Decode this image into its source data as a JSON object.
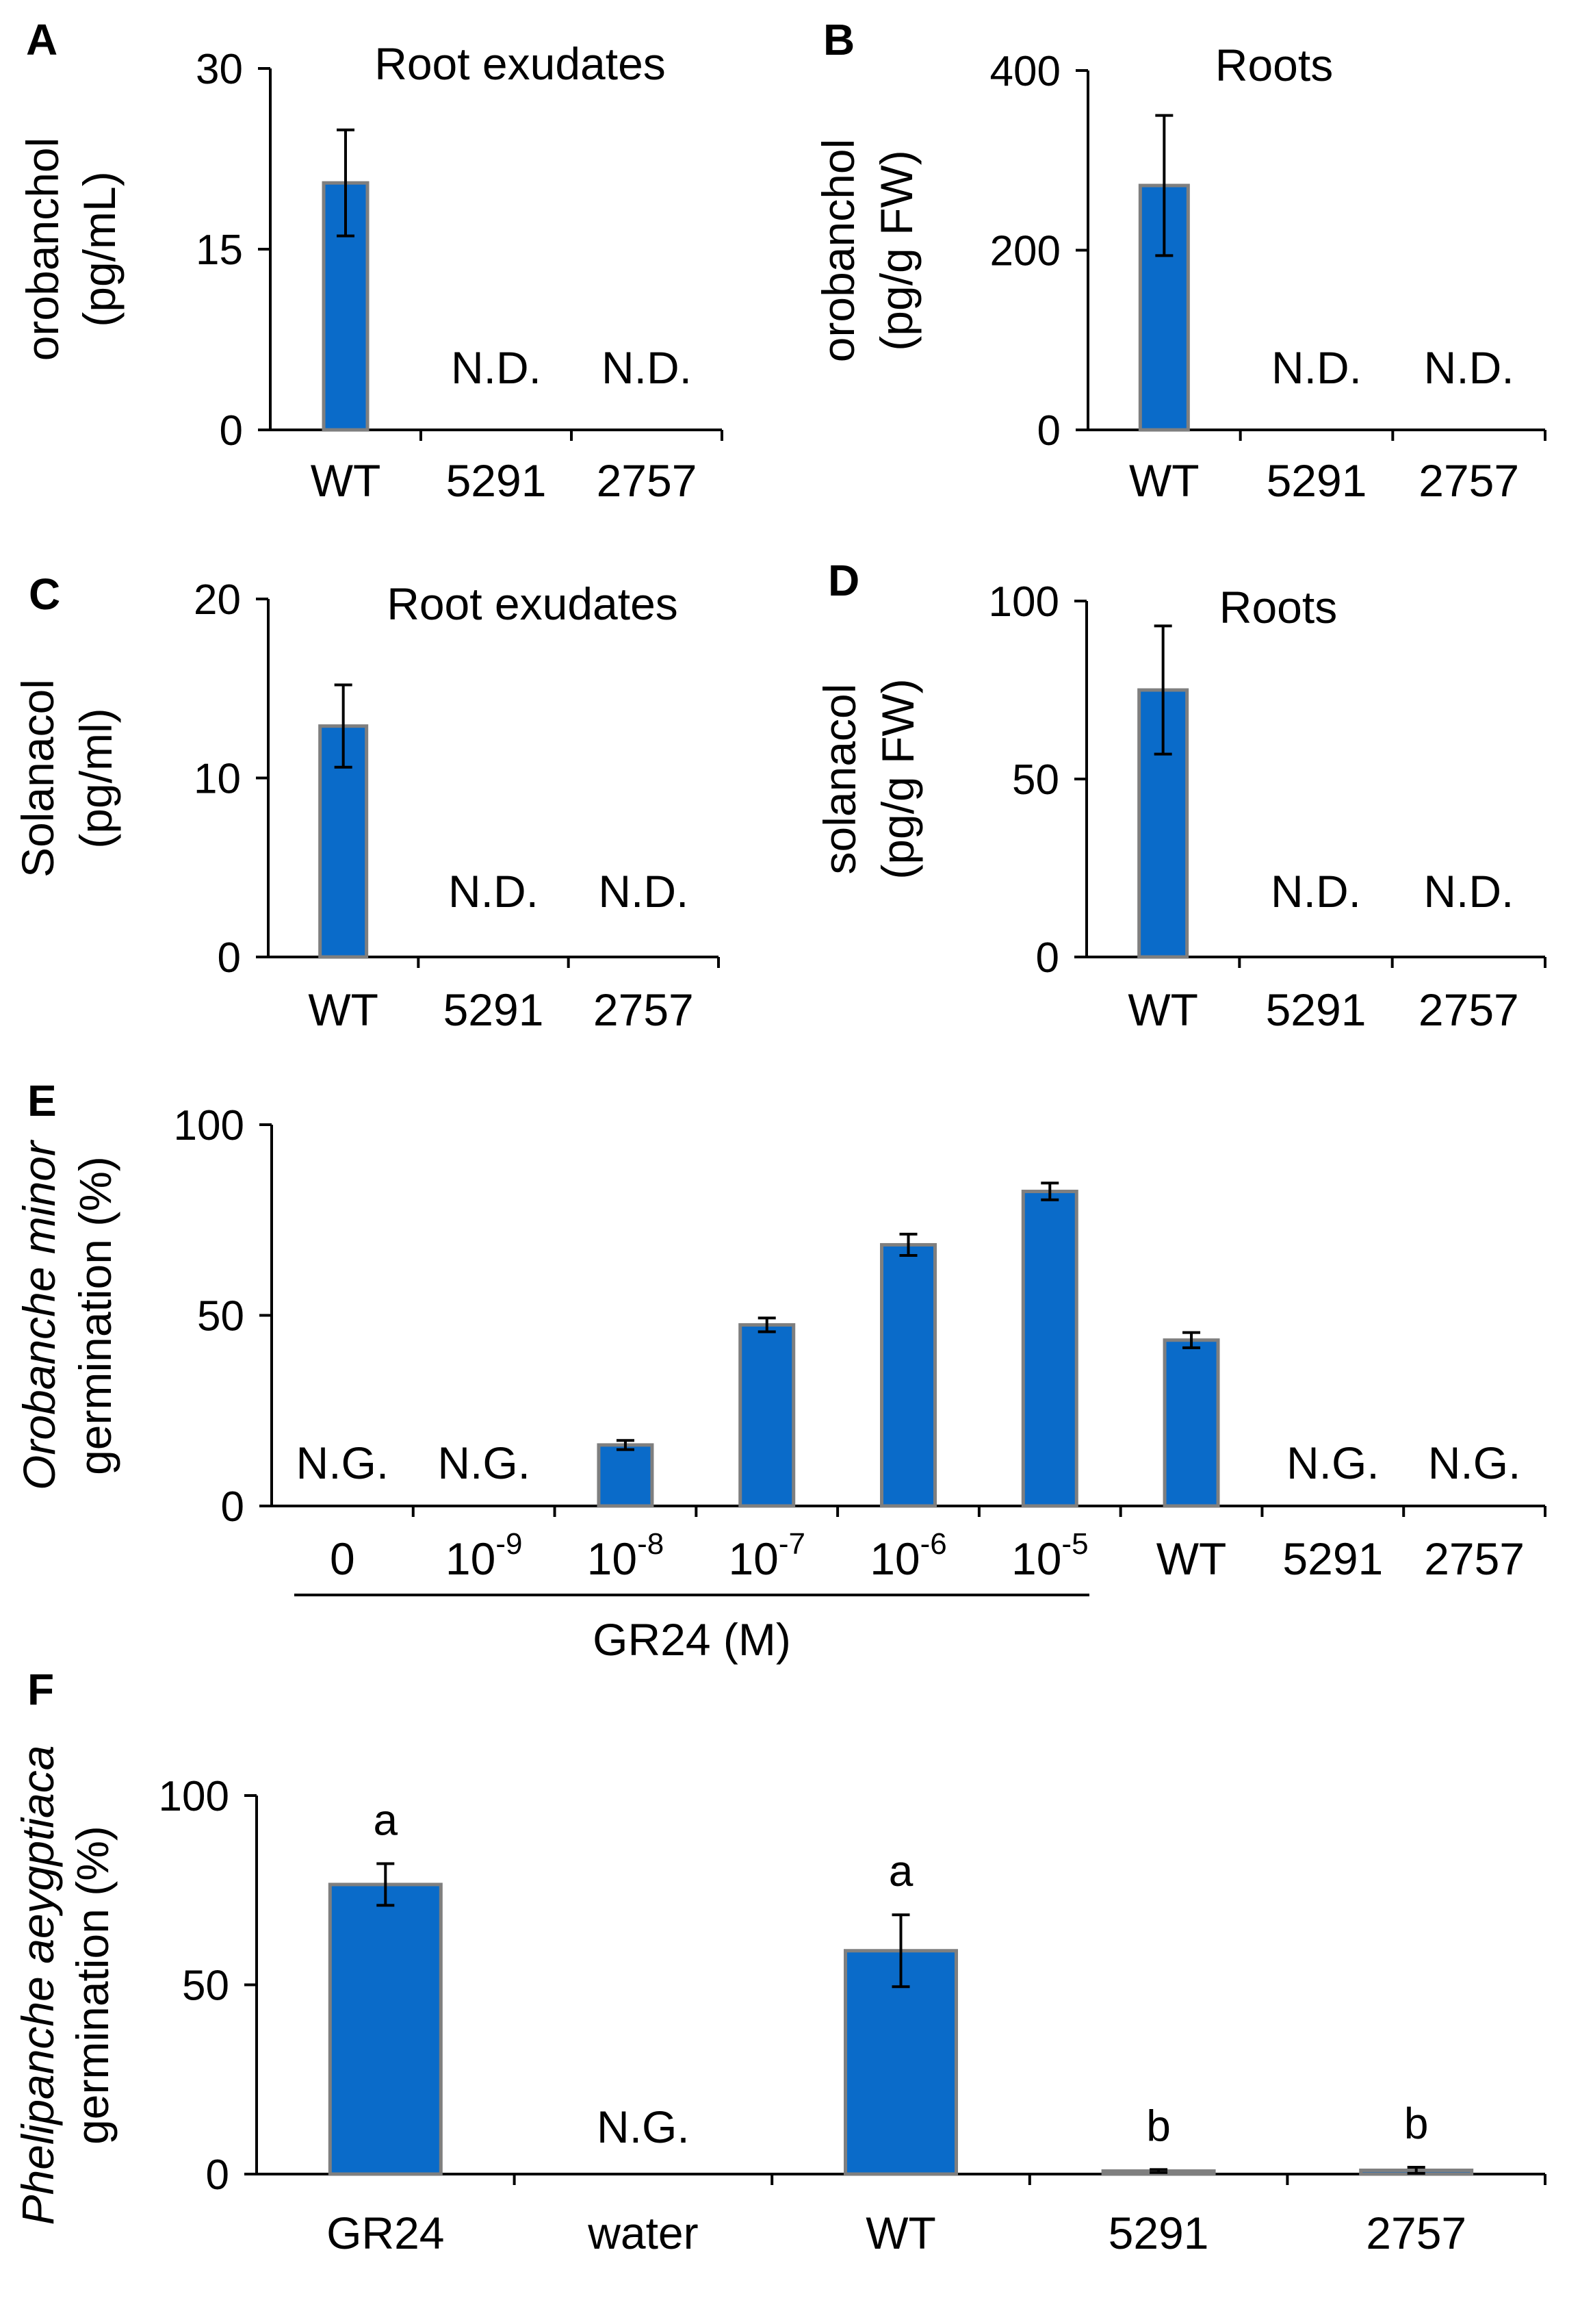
{
  "colors": {
    "bar_fill": "#0a6bc9",
    "bar_stroke": "#7f7f7f",
    "axis": "#000000"
  },
  "chart_data": [
    {
      "panel": "A",
      "type": "bar",
      "title": "Root exudates",
      "ylabel": [
        "orobanchol",
        "(pg/mL)"
      ],
      "categories": [
        "WT",
        "5291",
        "2757"
      ],
      "values": [
        20.5,
        null,
        null
      ],
      "errors": [
        4.4,
        null,
        null
      ],
      "labels": [
        "",
        "N.D.",
        "N.D."
      ],
      "ylim": [
        0,
        30
      ],
      "yticks": [
        0,
        15,
        30
      ],
      "yticklabels": [
        "0",
        "15",
        "30"
      ]
    },
    {
      "panel": "B",
      "type": "bar",
      "title": "Roots",
      "ylabel": [
        "orobanchol",
        "(pg/g FW)"
      ],
      "categories": [
        "WT",
        "5291",
        "2757"
      ],
      "values": [
        272,
        null,
        null
      ],
      "errors": [
        78,
        null,
        null
      ],
      "labels": [
        "",
        "N.D.",
        "N.D."
      ],
      "ylim": [
        0,
        400
      ],
      "yticks": [
        0,
        200,
        400
      ],
      "yticklabels": [
        "0",
        "200",
        "400"
      ]
    },
    {
      "panel": "C",
      "type": "bar",
      "title": "Root exudates",
      "ylabel": [
        "Solanacol",
        "(pg/ml)"
      ],
      "categories": [
        "WT",
        "5291",
        "2757"
      ],
      "values": [
        12.9,
        null,
        null
      ],
      "errors": [
        2.3,
        null,
        null
      ],
      "labels": [
        "",
        "N.D.",
        "N.D."
      ],
      "ylim": [
        0,
        20
      ],
      "yticks": [
        0,
        10,
        20
      ],
      "yticklabels": [
        "0",
        "10",
        "20"
      ]
    },
    {
      "panel": "D",
      "type": "bar",
      "title": "Roots",
      "ylabel": [
        "solanacol",
        "(pg/g FW)"
      ],
      "categories": [
        "WT",
        "5291",
        "2757"
      ],
      "values": [
        75,
        null,
        null
      ],
      "errors": [
        18,
        null,
        null
      ],
      "labels": [
        "",
        "N.D.",
        "N.D."
      ],
      "ylim": [
        0,
        100
      ],
      "yticks": [
        0,
        50,
        100
      ],
      "yticklabels": [
        "0",
        "50",
        "100"
      ]
    },
    {
      "panel": "E",
      "type": "bar",
      "title": "",
      "ylabel_italic": "Orobanche minor",
      "ylabel": [
        "germination (%)"
      ],
      "categories": [
        "0",
        "10",
        "10",
        "10",
        "10",
        "10",
        "WT",
        "5291",
        "2757"
      ],
      "category_exponents": [
        "",
        "-9",
        "-8",
        "-7",
        "-6",
        "-5",
        "",
        "",
        ""
      ],
      "values": [
        null,
        null,
        16,
        47.5,
        68.5,
        82.5,
        43.5,
        null,
        null
      ],
      "errors": [
        null,
        null,
        1.2,
        1.8,
        2.8,
        2.2,
        2.0,
        null,
        null
      ],
      "labels": [
        "N.G.",
        "N.G.",
        "",
        "",
        "",
        "",
        "",
        "N.G.",
        "N.G."
      ],
      "group_label": "GR24 (M)",
      "ylim": [
        0,
        100
      ],
      "yticks": [
        0,
        50,
        100
      ],
      "yticklabels": [
        "0",
        "50",
        "100"
      ]
    },
    {
      "panel": "F",
      "type": "bar",
      "title": "",
      "ylabel_italic": "Phelipanche aeygptiaca",
      "ylabel": [
        "germination (%)"
      ],
      "categories": [
        "GR24",
        "water",
        "WT",
        "5291",
        "2757"
      ],
      "values": [
        76.5,
        null,
        59,
        0.8,
        1.0
      ],
      "errors": [
        5.5,
        null,
        9.5,
        0.4,
        0.8
      ],
      "labels": [
        "",
        "N.G.",
        "",
        "",
        ""
      ],
      "significance": [
        "a",
        "",
        "a",
        "b",
        "b"
      ],
      "ylim": [
        0,
        100
      ],
      "yticks": [
        0,
        50,
        100
      ],
      "yticklabels": [
        "0",
        "50",
        "100"
      ]
    }
  ]
}
